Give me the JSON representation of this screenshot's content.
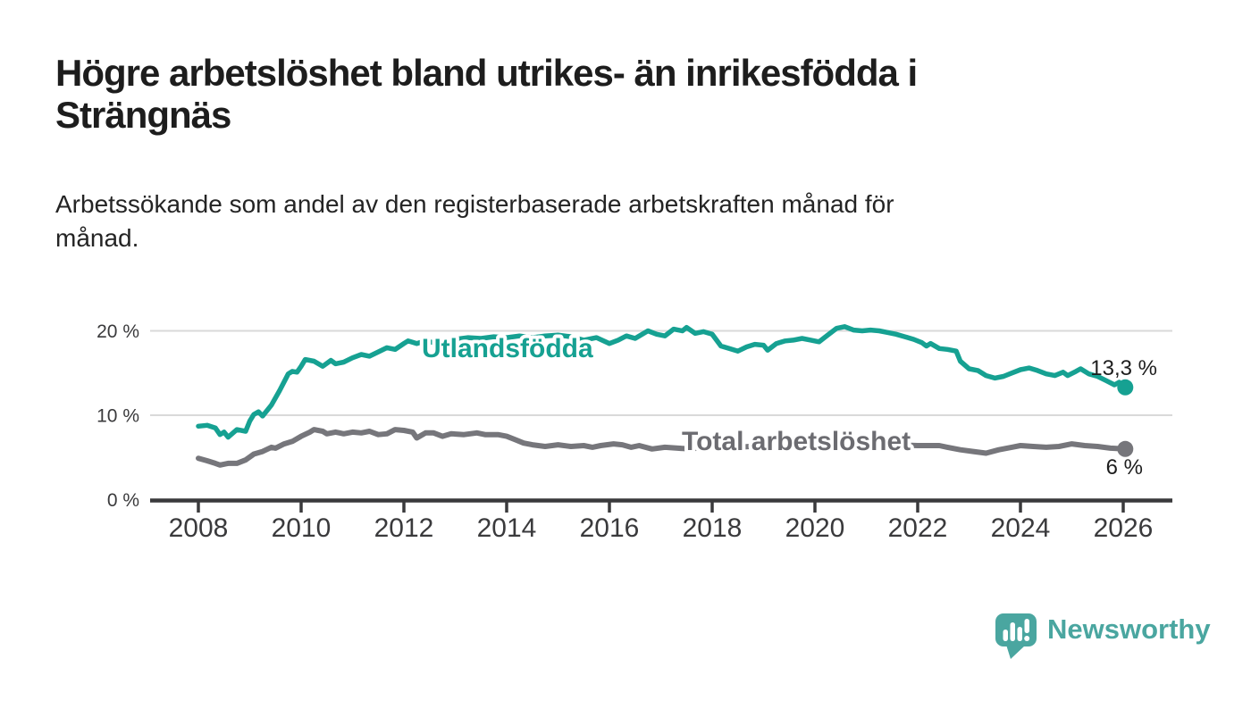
{
  "header": {
    "title": "Högre arbetslöshet bland utrikes- än inrikesfödda i Strängnäs",
    "subtitle": "Arbetssökande som andel av den registerbaserade arbetskraften månad för månad."
  },
  "chart_data": {
    "type": "line",
    "unit": "%",
    "grid": "horizontal",
    "grid_color": "#d9d9d9",
    "axis_color": "#3a3a3c",
    "x_axis": {
      "ticks": [
        "2008",
        "2010",
        "2012",
        "2014",
        "2016",
        "2018",
        "2020",
        "2022",
        "2024",
        "2026"
      ],
      "range": [
        2007.06,
        2026.97
      ]
    },
    "y_axis": {
      "ticks": [
        {
          "value": 20,
          "label": "20 %"
        },
        {
          "value": 10,
          "label": "10 %"
        },
        {
          "value": 0,
          "label": "0 %"
        }
      ],
      "range": [
        0,
        21.5
      ]
    },
    "series": [
      {
        "name": "Utlandsfödda",
        "color": "#16a192",
        "label_color": "#16a192",
        "end_label": "13,3 %",
        "end_value": 13.3,
        "points": [
          [
            2008.0,
            8.7
          ],
          [
            2008.17,
            8.8
          ],
          [
            2008.33,
            8.5
          ],
          [
            2008.42,
            7.7
          ],
          [
            2008.5,
            8.0
          ],
          [
            2008.58,
            7.4
          ],
          [
            2008.75,
            8.3
          ],
          [
            2008.92,
            8.1
          ],
          [
            2009.0,
            9.3
          ],
          [
            2009.08,
            10.1
          ],
          [
            2009.17,
            10.4
          ],
          [
            2009.25,
            9.9
          ],
          [
            2009.42,
            11.2
          ],
          [
            2009.58,
            12.9
          ],
          [
            2009.75,
            14.9
          ],
          [
            2009.83,
            15.2
          ],
          [
            2009.92,
            15.1
          ],
          [
            2010.0,
            15.8
          ],
          [
            2010.08,
            16.6
          ],
          [
            2010.25,
            16.4
          ],
          [
            2010.42,
            15.8
          ],
          [
            2010.58,
            16.5
          ],
          [
            2010.67,
            16.1
          ],
          [
            2010.83,
            16.3
          ],
          [
            2011.0,
            16.8
          ],
          [
            2011.17,
            17.2
          ],
          [
            2011.33,
            17.0
          ],
          [
            2011.5,
            17.5
          ],
          [
            2011.67,
            18.0
          ],
          [
            2011.83,
            17.8
          ],
          [
            2012.0,
            18.5
          ],
          [
            2012.08,
            18.8
          ],
          [
            2012.25,
            18.5
          ],
          [
            2012.42,
            18.8
          ],
          [
            2012.58,
            18.6
          ],
          [
            2012.75,
            18.8
          ],
          [
            2013.0,
            19.0
          ],
          [
            2013.25,
            19.2
          ],
          [
            2013.5,
            19.1
          ],
          [
            2013.75,
            19.3
          ],
          [
            2014.0,
            19.2
          ],
          [
            2014.25,
            19.4
          ],
          [
            2014.5,
            19.2
          ],
          [
            2014.75,
            19.4
          ],
          [
            2015.0,
            19.5
          ],
          [
            2015.25,
            19.3
          ],
          [
            2015.5,
            18.9
          ],
          [
            2015.75,
            19.2
          ],
          [
            2016.0,
            18.5
          ],
          [
            2016.17,
            18.9
          ],
          [
            2016.33,
            19.4
          ],
          [
            2016.5,
            19.1
          ],
          [
            2016.75,
            20.0
          ],
          [
            2016.92,
            19.6
          ],
          [
            2017.08,
            19.4
          ],
          [
            2017.25,
            20.2
          ],
          [
            2017.42,
            20.0
          ],
          [
            2017.5,
            20.4
          ],
          [
            2017.67,
            19.7
          ],
          [
            2017.83,
            19.9
          ],
          [
            2018.0,
            19.6
          ],
          [
            2018.17,
            18.2
          ],
          [
            2018.33,
            17.9
          ],
          [
            2018.5,
            17.6
          ],
          [
            2018.67,
            18.1
          ],
          [
            2018.83,
            18.4
          ],
          [
            2019.0,
            18.3
          ],
          [
            2019.08,
            17.7
          ],
          [
            2019.25,
            18.5
          ],
          [
            2019.42,
            18.8
          ],
          [
            2019.58,
            18.9
          ],
          [
            2019.75,
            19.1
          ],
          [
            2019.92,
            18.9
          ],
          [
            2020.08,
            18.7
          ],
          [
            2020.25,
            19.5
          ],
          [
            2020.42,
            20.3
          ],
          [
            2020.58,
            20.5
          ],
          [
            2020.75,
            20.1
          ],
          [
            2020.92,
            20.0
          ],
          [
            2021.08,
            20.1
          ],
          [
            2021.25,
            20.0
          ],
          [
            2021.42,
            19.8
          ],
          [
            2021.58,
            19.6
          ],
          [
            2021.75,
            19.3
          ],
          [
            2021.92,
            19.0
          ],
          [
            2022.08,
            18.6
          ],
          [
            2022.17,
            18.2
          ],
          [
            2022.25,
            18.5
          ],
          [
            2022.42,
            17.9
          ],
          [
            2022.58,
            17.8
          ],
          [
            2022.75,
            17.6
          ],
          [
            2022.83,
            16.4
          ],
          [
            2023.0,
            15.5
          ],
          [
            2023.17,
            15.3
          ],
          [
            2023.33,
            14.7
          ],
          [
            2023.5,
            14.4
          ],
          [
            2023.67,
            14.6
          ],
          [
            2023.83,
            15.0
          ],
          [
            2024.0,
            15.4
          ],
          [
            2024.17,
            15.6
          ],
          [
            2024.33,
            15.3
          ],
          [
            2024.5,
            14.9
          ],
          [
            2024.67,
            14.7
          ],
          [
            2024.83,
            15.1
          ],
          [
            2024.92,
            14.7
          ],
          [
            2025.08,
            15.2
          ],
          [
            2025.17,
            15.5
          ],
          [
            2025.33,
            14.9
          ],
          [
            2025.5,
            14.6
          ],
          [
            2025.67,
            14.1
          ],
          [
            2025.83,
            13.6
          ],
          [
            2025.92,
            13.9
          ],
          [
            2026.04,
            13.3
          ]
        ]
      },
      {
        "name": "Total arbetslöshet",
        "color": "#76767b",
        "label_color": "#6c6c71",
        "end_label": "6 %",
        "end_value": 6.0,
        "points": [
          [
            2008.0,
            4.9
          ],
          [
            2008.17,
            4.6
          ],
          [
            2008.33,
            4.3
          ],
          [
            2008.42,
            4.1
          ],
          [
            2008.58,
            4.3
          ],
          [
            2008.75,
            4.3
          ],
          [
            2008.92,
            4.7
          ],
          [
            2009.08,
            5.4
          ],
          [
            2009.25,
            5.7
          ],
          [
            2009.42,
            6.2
          ],
          [
            2009.5,
            6.1
          ],
          [
            2009.67,
            6.6
          ],
          [
            2009.83,
            6.9
          ],
          [
            2010.0,
            7.5
          ],
          [
            2010.17,
            8.0
          ],
          [
            2010.25,
            8.3
          ],
          [
            2010.42,
            8.1
          ],
          [
            2010.5,
            7.8
          ],
          [
            2010.67,
            8.0
          ],
          [
            2010.83,
            7.8
          ],
          [
            2011.0,
            8.0
          ],
          [
            2011.17,
            7.9
          ],
          [
            2011.33,
            8.1
          ],
          [
            2011.5,
            7.7
          ],
          [
            2011.67,
            7.8
          ],
          [
            2011.83,
            8.3
          ],
          [
            2012.0,
            8.2
          ],
          [
            2012.17,
            8.0
          ],
          [
            2012.25,
            7.3
          ],
          [
            2012.42,
            7.9
          ],
          [
            2012.58,
            7.9
          ],
          [
            2012.75,
            7.5
          ],
          [
            2012.92,
            7.8
          ],
          [
            2013.17,
            7.7
          ],
          [
            2013.42,
            7.9
          ],
          [
            2013.58,
            7.7
          ],
          [
            2013.83,
            7.7
          ],
          [
            2014.0,
            7.5
          ],
          [
            2014.17,
            7.1
          ],
          [
            2014.33,
            6.7
          ],
          [
            2014.5,
            6.5
          ],
          [
            2014.75,
            6.3
          ],
          [
            2015.0,
            6.5
          ],
          [
            2015.25,
            6.3
          ],
          [
            2015.5,
            6.4
          ],
          [
            2015.67,
            6.2
          ],
          [
            2015.83,
            6.4
          ],
          [
            2016.08,
            6.6
          ],
          [
            2016.25,
            6.5
          ],
          [
            2016.42,
            6.2
          ],
          [
            2016.58,
            6.4
          ],
          [
            2016.83,
            6.0
          ],
          [
            2017.08,
            6.2
          ],
          [
            2017.33,
            6.1
          ],
          [
            2017.58,
            6.0
          ],
          [
            2017.83,
            6.2
          ],
          [
            2018.08,
            6.3
          ],
          [
            2018.5,
            6.2
          ],
          [
            2019.0,
            6.4
          ],
          [
            2019.5,
            6.3
          ],
          [
            2020.0,
            6.6
          ],
          [
            2020.5,
            6.8
          ],
          [
            2021.0,
            6.7
          ],
          [
            2021.5,
            6.5
          ],
          [
            2022.0,
            6.4
          ],
          [
            2022.42,
            6.4
          ],
          [
            2022.58,
            6.2
          ],
          [
            2022.83,
            5.9
          ],
          [
            2023.08,
            5.7
          ],
          [
            2023.33,
            5.5
          ],
          [
            2023.58,
            5.9
          ],
          [
            2023.83,
            6.2
          ],
          [
            2024.0,
            6.4
          ],
          [
            2024.25,
            6.3
          ],
          [
            2024.5,
            6.2
          ],
          [
            2024.75,
            6.3
          ],
          [
            2025.0,
            6.6
          ],
          [
            2025.25,
            6.4
          ],
          [
            2025.5,
            6.3
          ],
          [
            2025.75,
            6.1
          ],
          [
            2026.04,
            6.0
          ]
        ]
      }
    ]
  },
  "branding": {
    "logo_text": "Newsworthy",
    "logo_color": "#4aa6a0",
    "logo_icon": "speech-bubble-bar-chart-icon"
  }
}
